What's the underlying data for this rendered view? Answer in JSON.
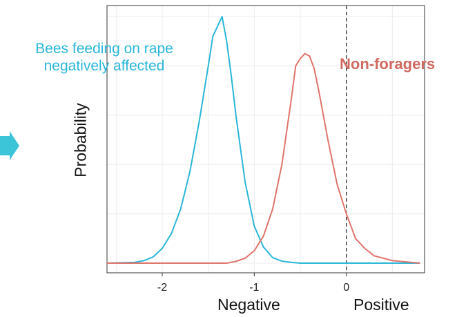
{
  "chart_data": {
    "type": "line",
    "title": "",
    "ylabel": "Probability",
    "xlabel_left": "Negative",
    "xlabel_right": "Positive",
    "xlim": [
      -2.6,
      0.85
    ],
    "ylim": [
      0,
      1.0
    ],
    "xticks": [
      -2,
      -1,
      0
    ],
    "xtick_labels": [
      "-2",
      "-1",
      "0"
    ],
    "grid": true,
    "reference_line": {
      "x": 0,
      "style": "dashed"
    },
    "colors": {
      "bees": "#29b6d8",
      "nonforagers": "#e0736a",
      "arrow": "#3cc4d8"
    },
    "series": [
      {
        "key": "bees",
        "x": [
          -2.6,
          -2.3,
          -2.2,
          -2.1,
          -2.0,
          -1.9,
          -1.8,
          -1.7,
          -1.6,
          -1.5,
          -1.45,
          -1.4,
          -1.35,
          -1.3,
          -1.25,
          -1.2,
          -1.1,
          -1.0,
          -0.9,
          -0.8,
          -0.7,
          -0.6,
          -0.5,
          -0.3,
          0.0,
          0.5,
          0.8
        ],
        "y": [
          0.0,
          0.003,
          0.01,
          0.025,
          0.06,
          0.12,
          0.22,
          0.37,
          0.57,
          0.8,
          0.92,
          0.96,
          1.0,
          0.9,
          0.76,
          0.6,
          0.33,
          0.15,
          0.065,
          0.022,
          0.008,
          0.003,
          0.0,
          0.0,
          0.0,
          0.0,
          0.0
        ]
      },
      {
        "key": "nonforagers",
        "x": [
          -2.6,
          -1.3,
          -1.2,
          -1.1,
          -1.0,
          -0.9,
          -0.8,
          -0.7,
          -0.6,
          -0.55,
          -0.5,
          -0.45,
          -0.4,
          -0.35,
          -0.3,
          -0.2,
          -0.1,
          0.0,
          0.1,
          0.2,
          0.3,
          0.5,
          0.8
        ],
        "y": [
          0.0,
          0.0,
          0.007,
          0.02,
          0.05,
          0.11,
          0.22,
          0.4,
          0.66,
          0.8,
          0.83,
          0.85,
          0.84,
          0.79,
          0.7,
          0.5,
          0.32,
          0.2,
          0.1,
          0.06,
          0.03,
          0.01,
          0.0
        ]
      }
    ],
    "annotations": [
      {
        "key": "bees",
        "lines": [
          "Bees feeding on rape",
          "negatively affected"
        ]
      },
      {
        "key": "nonforagers",
        "lines": [
          "Non-foragers"
        ]
      }
    ]
  }
}
